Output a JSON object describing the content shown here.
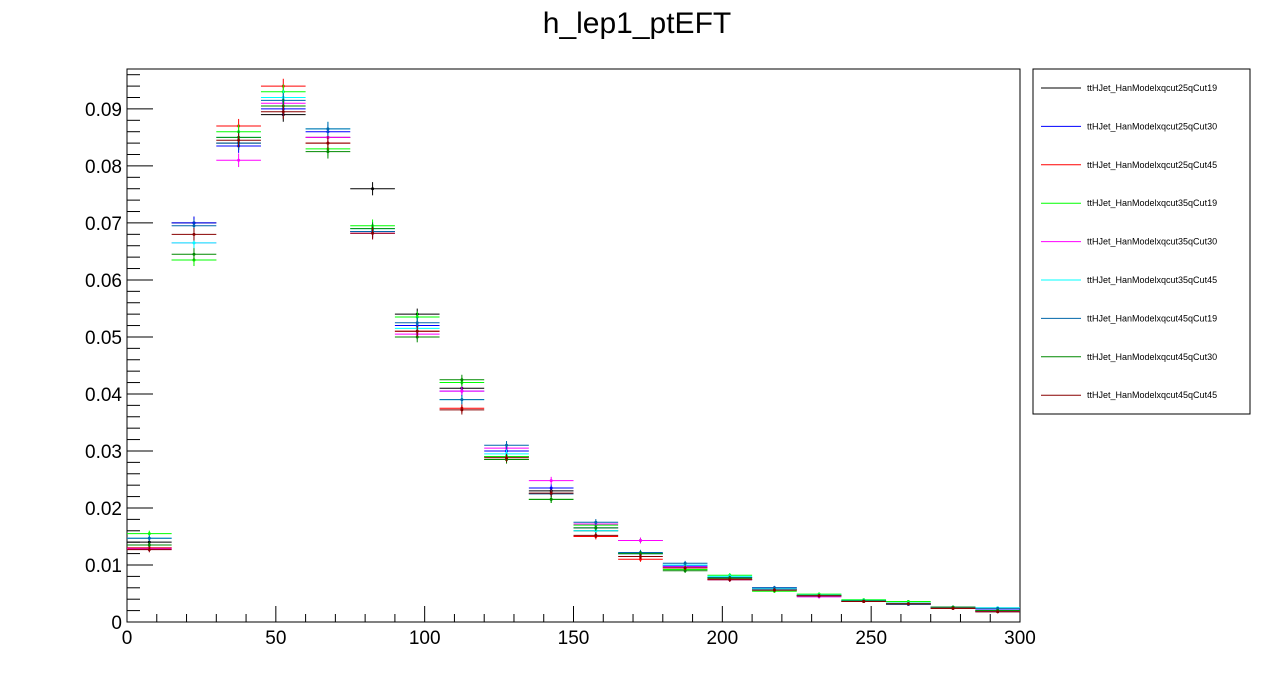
{
  "chart_data": {
    "type": "scatter",
    "title": "h_lep1_ptEFT",
    "xlabel": "",
    "ylabel": "",
    "xlim": [
      0,
      300
    ],
    "ylim": [
      0,
      0.097
    ],
    "bin_width": 15,
    "x_ticks": [
      0,
      50,
      100,
      150,
      200,
      250,
      300
    ],
    "x_tick_labels": [
      "0",
      "50",
      "100",
      "150",
      "200",
      "250",
      "300"
    ],
    "y_ticks": [
      0,
      0.01,
      0.02,
      0.03,
      0.04,
      0.05,
      0.06,
      0.07,
      0.08,
      0.09
    ],
    "y_tick_labels": [
      "0",
      "0.01",
      "0.02",
      "0.03",
      "0.04",
      "0.05",
      "0.06",
      "0.07",
      "0.08",
      "0.09"
    ],
    "grid": false,
    "legend_position": "right",
    "x": [
      7.5,
      22.5,
      37.5,
      52.5,
      67.5,
      82.5,
      97.5,
      112.5,
      127.5,
      142.5,
      157.5,
      172.5,
      187.5,
      202.5,
      217.5,
      232.5,
      247.5,
      262.5,
      277.5,
      292.5
    ],
    "series": [
      {
        "name": "ttHJet_HanModelxqcut25qCut19",
        "color": "#000000",
        "values": [
          0.014,
          0.07,
          0.084,
          0.089,
          0.085,
          0.076,
          0.054,
          0.041,
          0.029,
          0.023,
          0.016,
          0.012,
          0.01,
          0.0075,
          0.0057,
          0.0046,
          0.0036,
          0.0033,
          0.0024,
          0.0018
        ]
      },
      {
        "name": "ttHJet_HanModelxqcut25qCut30",
        "color": "#0000ff",
        "values": [
          0.013,
          0.07,
          0.0835,
          0.09,
          0.086,
          0.0685,
          0.052,
          0.0405,
          0.03,
          0.0235,
          0.0165,
          0.012,
          0.0098,
          0.0078,
          0.006,
          0.0047,
          0.0037,
          0.0031,
          0.0025,
          0.0021
        ]
      },
      {
        "name": "ttHJet_HanModelxqcut25qCut45",
        "color": "#ff0000",
        "values": [
          0.013,
          0.0635,
          0.087,
          0.094,
          0.084,
          0.0685,
          0.051,
          0.0375,
          0.0285,
          0.0225,
          0.015,
          0.011,
          0.0095,
          0.0075,
          0.0058,
          0.0046,
          0.0036,
          0.0031,
          0.0024,
          0.0019
        ]
      },
      {
        "name": "ttHJet_HanModelxqcut35qCut19",
        "color": "#00ff00",
        "values": [
          0.0155,
          0.0635,
          0.086,
          0.093,
          0.083,
          0.0695,
          0.0535,
          0.042,
          0.029,
          0.0215,
          0.017,
          0.0143,
          0.0092,
          0.0082,
          0.0054,
          0.0049,
          0.0039,
          0.0036,
          0.0026,
          0.002
        ]
      },
      {
        "name": "ttHJet_HanModelxqcut35qCut30",
        "color": "#ff00ff",
        "values": [
          0.0128,
          0.0665,
          0.081,
          0.091,
          0.085,
          0.0682,
          0.0505,
          0.0405,
          0.0305,
          0.0248,
          0.0172,
          0.0143,
          0.0097,
          0.0074,
          0.0057,
          0.0044,
          0.0037,
          0.0031,
          0.0025,
          0.0019
        ]
      },
      {
        "name": "ttHJet_HanModelxqcut35qCut45",
        "color": "#00ffff",
        "values": [
          0.0147,
          0.0665,
          0.085,
          0.092,
          0.0865,
          0.069,
          0.0515,
          0.039,
          0.0295,
          0.0225,
          0.016,
          0.012,
          0.01,
          0.008,
          0.0058,
          0.0047,
          0.0038,
          0.0033,
          0.0026,
          0.0025
        ]
      },
      {
        "name": "ttHJet_HanModelxqcut45qCut19",
        "color": "#0066aa",
        "values": [
          0.0147,
          0.0695,
          0.084,
          0.0915,
          0.0865,
          0.0685,
          0.0525,
          0.039,
          0.031,
          0.0225,
          0.0175,
          0.0122,
          0.0103,
          0.0078,
          0.006,
          0.0046,
          0.0037,
          0.0031,
          0.0026,
          0.0024
        ]
      },
      {
        "name": "ttHJet_HanModelxqcut45qCut30",
        "color": "#008800",
        "values": [
          0.0135,
          0.0645,
          0.085,
          0.0905,
          0.0825,
          0.069,
          0.05,
          0.0425,
          0.0285,
          0.0215,
          0.0165,
          0.012,
          0.009,
          0.0077,
          0.0056,
          0.0046,
          0.0037,
          0.0032,
          0.0026,
          0.002
        ]
      },
      {
        "name": "ttHJet_HanModelxqcut45qCut45",
        "color": "#880000",
        "values": [
          0.0127,
          0.068,
          0.0845,
          0.0895,
          0.084,
          0.0682,
          0.051,
          0.0372,
          0.0288,
          0.0226,
          0.0152,
          0.0115,
          0.0095,
          0.0074,
          0.0056,
          0.0046,
          0.0036,
          0.0032,
          0.0024,
          0.0018
        ]
      }
    ]
  }
}
